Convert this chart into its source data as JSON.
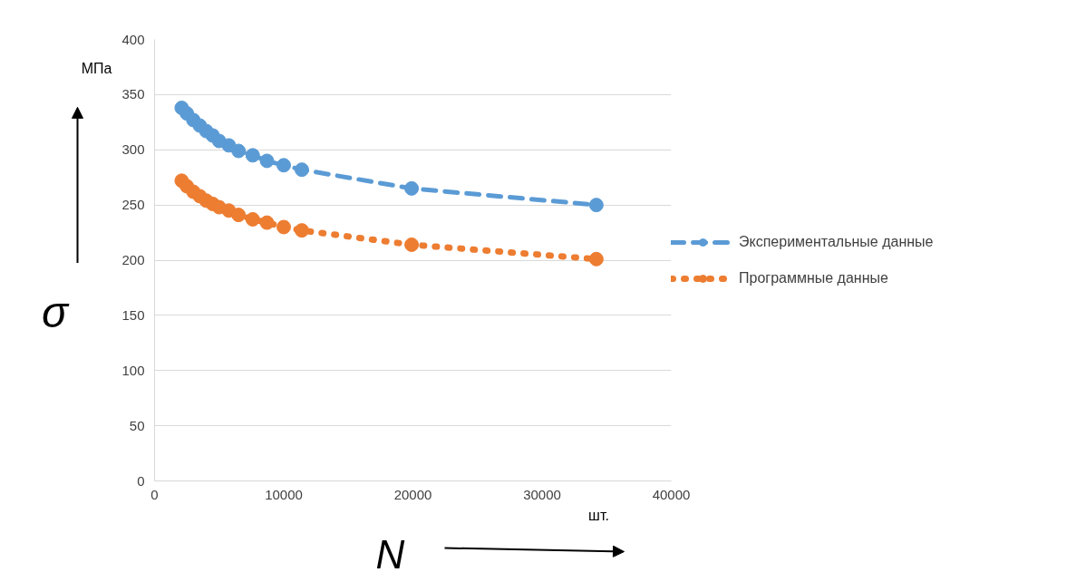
{
  "chart_data": {
    "type": "line",
    "xlabel": "N",
    "ylabel": "σ",
    "x": [
      2100,
      2500,
      3000,
      3500,
      4000,
      4500,
      5000,
      5750,
      6500,
      7600,
      8700,
      10000,
      11400,
      19900,
      34200
    ],
    "series": [
      {
        "name": "Экспериментальные данные",
        "color": "#5b9bd5",
        "line_style": "dashed",
        "values": [
          338,
          333,
          327,
          322,
          317,
          313,
          308,
          304,
          299,
          295,
          290,
          286,
          282,
          265,
          250
        ]
      },
      {
        "name": "Программные данные",
        "color": "#ed7d31",
        "line_style": "dotted",
        "values": [
          272,
          267,
          262,
          258,
          254,
          251,
          248,
          245,
          241,
          237,
          234,
          230,
          227,
          214,
          201
        ]
      }
    ],
    "marker": "circle",
    "xlim": [
      0,
      40000
    ],
    "ylim": [
      0,
      400
    ],
    "xticks": [
      0,
      10000,
      20000,
      30000,
      40000
    ],
    "yticks": [
      0,
      50,
      100,
      150,
      200,
      250,
      300,
      350,
      400
    ],
    "grid": "y",
    "legend": "right",
    "annotations": [
      "МПа",
      "шт."
    ]
  }
}
